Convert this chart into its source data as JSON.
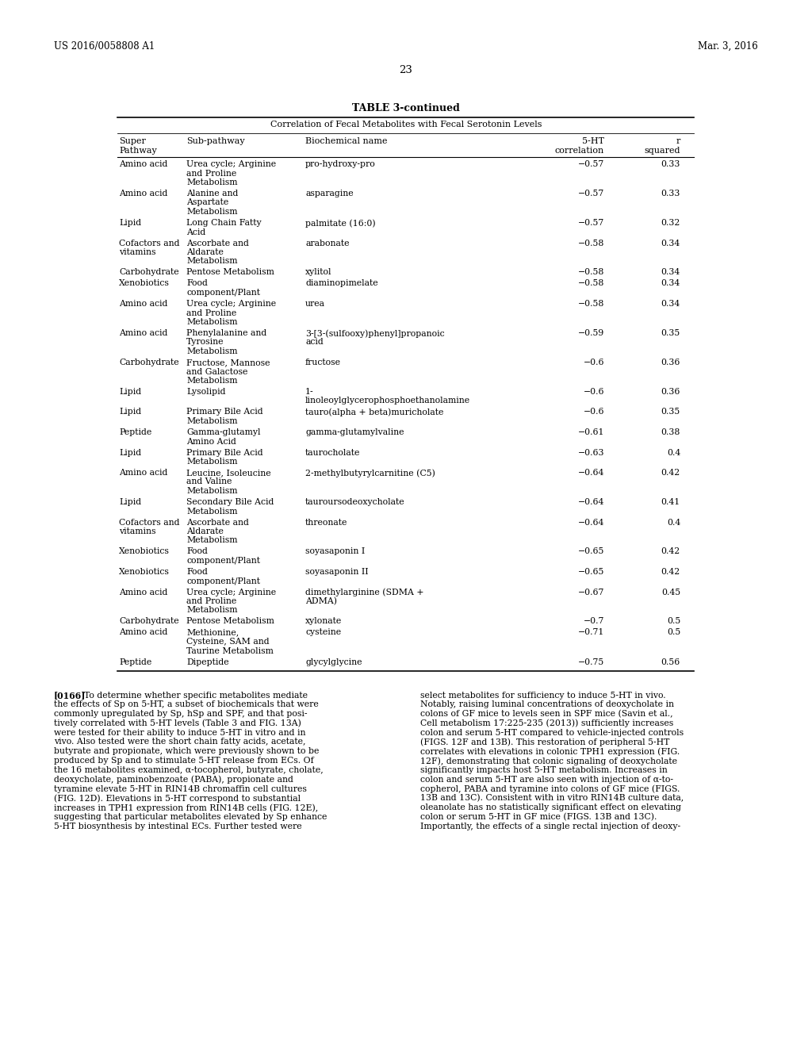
{
  "header_left": "US 2016/0058808 A1",
  "header_right": "Mar. 3, 2016",
  "page_number": "23",
  "table_title": "TABLE 3-continued",
  "table_subtitle": "Correlation of Fecal Metabolites with Fecal Serotonin Levels",
  "rows": [
    [
      "Amino acid",
      "Urea cycle; Arginine\nand Proline\nMetabolism",
      "pro-hydroxy-pro",
      "−0.57",
      "0.33"
    ],
    [
      "Amino acid",
      "Alanine and\nAspartate\nMetabolism",
      "asparagine",
      "−0.57",
      "0.33"
    ],
    [
      "Lipid",
      "Long Chain Fatty\nAcid",
      "palmitate (16:0)",
      "−0.57",
      "0.32"
    ],
    [
      "Cofactors and\nvitamins",
      "Ascorbate and\nAldarate\nMetabolism",
      "arabonate",
      "−0.58",
      "0.34"
    ],
    [
      "Carbohydrate",
      "Pentose Metabolism",
      "xylitol",
      "−0.58",
      "0.34"
    ],
    [
      "Xenobiotics",
      "Food\ncomponent/Plant",
      "diaminopimelate",
      "−0.58",
      "0.34"
    ],
    [
      "Amino acid",
      "Urea cycle; Arginine\nand Proline\nMetabolism",
      "urea",
      "−0.58",
      "0.34"
    ],
    [
      "Amino acid",
      "Phenylalanine and\nTyrosine\nMetabolism",
      "3-[3-(sulfooxy)phenyl]propanoic\nacid",
      "−0.59",
      "0.35"
    ],
    [
      "Carbohydrate",
      "Fructose, Mannose\nand Galactose\nMetabolism",
      "fructose",
      "−0.6",
      "0.36"
    ],
    [
      "Lipid",
      "Lysolipid",
      "1-\nlinoleoylglycerophosphoethanolamine",
      "−0.6",
      "0.36"
    ],
    [
      "Lipid",
      "Primary Bile Acid\nMetabolism",
      "tauro(alpha + beta)muricholate",
      "−0.6",
      "0.35"
    ],
    [
      "Peptide",
      "Gamma-glutamyl\nAmino Acid",
      "gamma-glutamylvaline",
      "−0.61",
      "0.38"
    ],
    [
      "Lipid",
      "Primary Bile Acid\nMetabolism",
      "taurocholate",
      "−0.63",
      "0.4"
    ],
    [
      "Amino acid",
      "Leucine, Isoleucine\nand Valine\nMetabolism",
      "2-methylbutyrylcarnitine (C5)",
      "−0.64",
      "0.42"
    ],
    [
      "Lipid",
      "Secondary Bile Acid\nMetabolism",
      "tauroursodeoxycholate",
      "−0.64",
      "0.41"
    ],
    [
      "Cofactors and\nvitamins",
      "Ascorbate and\nAldarate\nMetabolism",
      "threonate",
      "−0.64",
      "0.4"
    ],
    [
      "Xenobiotics",
      "Food\ncomponent/Plant",
      "soyasaponin I",
      "−0.65",
      "0.42"
    ],
    [
      "Xenobiotics",
      "Food\ncomponent/Plant",
      "soyasaponin II",
      "−0.65",
      "0.42"
    ],
    [
      "Amino acid",
      "Urea cycle; Arginine\nand Proline\nMetabolism",
      "dimethylarginine (SDMA +\nADMA)",
      "−0.67",
      "0.45"
    ],
    [
      "Carbohydrate",
      "Pentose Metabolism",
      "xylonate",
      "−0.7",
      "0.5"
    ],
    [
      "Amino acid",
      "Methionine,\nCysteine, SAM and\nTaurine Metabolism",
      "cysteine",
      "−0.71",
      "0.5"
    ],
    [
      "Peptide",
      "Dipeptide",
      "glycylglycine",
      "−0.75",
      "0.56"
    ]
  ],
  "para_tag": "[0166]",
  "para_left_lines": [
    "To determine whether specific metabolites mediate",
    "the effects of Sp on 5-HT, a subset of biochemicals that were",
    "commonly upregulated by Sp, hSp and SPF, and that posi-",
    "tively correlated with 5-HT levels (Table 3 and FIG. 13A)",
    "were tested for their ability to induce 5-HT in vitro and in",
    "vivo. Also tested were the short chain fatty acids, acetate,",
    "butyrate and propionate, which were previously shown to be",
    "produced by Sp and to stimulate 5-HT release from ECs. Of",
    "the 16 metabolites examined, α-tocopherol, butyrate, cholate,",
    "deoxycholate, paminobenzoate (PABA), propionate and",
    "tyramine elevate 5-HT in RIN14B chromaffin cell cultures",
    "(FIG. 12D). Elevations in 5-HT correspond to substantial",
    "increases in TPH1 expression from RIN14B cells (FIG. 12E),",
    "suggesting that particular metabolites elevated by Sp enhance",
    "5-HT biosynthesis by intestinal ECs. Further tested were"
  ],
  "para_right_lines": [
    "select metabolites for sufficiency to induce 5-HT in vivo.",
    "Notably, raising luminal concentrations of deoxycholate in",
    "colons of GF mice to levels seen in SPF mice (Savin et al.,",
    "Cell metabolism 17:225-235 (2013)) sufficiently increases",
    "colon and serum 5-HT compared to vehicle-injected controls",
    "(FIGS. 12F and 13B). This restoration of peripheral 5-HT",
    "correlates with elevations in colonic TPH1 expression (FIG.",
    "12F), demonstrating that colonic signaling of deoxycholate",
    "significantly impacts host 5-HT metabolism. Increases in",
    "colon and serum 5-HT are also seen with injection of α-to-",
    "copherol, PABA and tyramine into colons of GF mice (FIGS.",
    "13B and 13C). Consistent with in vitro RIN14B culture data,",
    "oleanolate has no statistically significant effect on elevating",
    "colon or serum 5-HT in GF mice (FIGS. 13B and 13C).",
    "Importantly, the effects of a single rectal injection of deoxy-"
  ],
  "bold_words_left": [
    "[0166]",
    "13A)",
    "12D).",
    "12E),",
    "Sp"
  ],
  "bold_words_right": [
    "12F",
    "13B).",
    "13B",
    "13C).",
    "13B",
    "13C)."
  ]
}
